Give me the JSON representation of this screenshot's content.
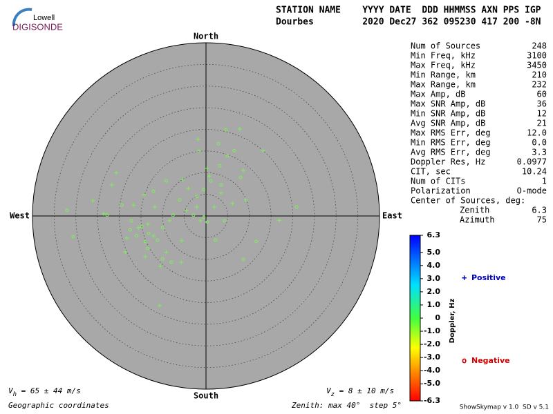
{
  "logo": {
    "top": "Lowell",
    "bottom": "DIGISONDE"
  },
  "header": {
    "line1": "STATION NAME    YYYY DATE  DDD HHMMSS AXN PPS IGP",
    "line2": "Dourbes         2020 Dec27 362 095230 417 200 -8N"
  },
  "stats": [
    [
      "Num of Sources",
      "248"
    ],
    [
      "Min Freq, kHz",
      "3100"
    ],
    [
      "Max Freq, kHz",
      "3450"
    ],
    [
      "Min Range, km",
      "210"
    ],
    [
      "Max Range, km",
      "232"
    ],
    [
      "Max Amp, dB",
      "60"
    ],
    [
      "Max SNR Amp, dB",
      "36"
    ],
    [
      "Min SNR Amp, dB",
      "12"
    ],
    [
      "Avg SNR Amp, dB",
      "21"
    ],
    [
      "Max RMS Err, deg",
      "12.0"
    ],
    [
      "Min RMS Err, deg",
      "0.0"
    ],
    [
      "Avg RMS Err, deg",
      "3.3"
    ],
    [
      "Doppler Res, Hz",
      "0.0977"
    ],
    [
      "CIT, sec",
      "10.24"
    ],
    [
      "Num of CITs",
      "1"
    ],
    [
      "Polarization",
      "O-mode"
    ]
  ],
  "center": {
    "title": "Center of Sources, deg:",
    "rows": [
      [
        "Zenith",
        "6.3"
      ],
      [
        "Azimuth",
        "75"
      ]
    ]
  },
  "chart_data": {
    "type": "skymap",
    "directions": {
      "north": "North",
      "south": "South",
      "west": "West",
      "east": "East"
    },
    "xlim": [
      -40,
      40
    ],
    "ylim": [
      -40,
      40
    ],
    "rticks": [
      5,
      10,
      15,
      20,
      25,
      30,
      35
    ],
    "series": [
      {
        "name": "Positive",
        "marker": "+",
        "color": "#7cf05a",
        "legend_color": "#0000c0",
        "x": [
          -1.8,
          -1.6,
          7.8,
          -20.7,
          -26.1,
          -21.7,
          -10.7,
          8.6,
          -5.4,
          0.2,
          0.8,
          13.1,
          16.9,
          9.2,
          -18.6,
          -14.0,
          -5.7,
          -10.5,
          -18.2,
          -15.6,
          -12.1,
          -8.4,
          -4.5,
          -2.1,
          -1.3,
          1.9,
          3.5,
          -23.6,
          -16.7,
          -14.3,
          -4.1,
          -11.8,
          -13.4,
          -9.2,
          -5.6,
          6.1
        ],
        "values": [
          17.7,
          15.1,
          20.1,
          10.0,
          3.5,
          7.2,
          -20.7,
          10.5,
          8.4,
          11.0,
          9.2,
          15.1,
          -1.0,
          3.7,
          -8.3,
          -9.4,
          -10.7,
          -11.6,
          -5.1,
          -2.7,
          -4.6,
          -1.1,
          1.3,
          2.1,
          -1.1,
          2.1,
          5.3,
          0.5,
          2.5,
          4.9,
          6.4,
          2.1,
          -1.9,
          -8.4,
          -5.7,
          2.9
        ]
      },
      {
        "name": "Negative",
        "marker": "o",
        "color": "#7cf05a",
        "legend_color": "#d00000",
        "x": [
          -32.0,
          -30.6,
          20.9,
          11.6,
          8.6,
          4.6,
          2.9,
          6.5,
          4.9,
          3.2,
          8.0,
          1.1,
          3.5,
          -9.2,
          -12.1,
          -19.4,
          -22.8,
          -17.2,
          -14.8,
          -13.2,
          -11.2,
          -14.0,
          -10.0,
          -7.6,
          -6.1,
          -2.9,
          -0.5,
          0.3,
          -2.1,
          -0.5,
          -10.0,
          -8.0,
          4.3,
          2.2,
          -17.5,
          -16.0,
          -13.4
        ],
        "values": [
          1.3,
          -4.8,
          2.1,
          -5.9,
          -10.0,
          19.9,
          16.7,
          15.1,
          13.9,
          11.6,
          8.9,
          8.1,
          7.2,
          8.1,
          5.7,
          2.5,
          0.2,
          -1.1,
          -2.4,
          -4.0,
          -5.6,
          -5.9,
          -2.7,
          0.2,
          3.7,
          0.2,
          -0.3,
          -1.4,
          4.5,
          6.1,
          -9.9,
          -10.7,
          -1.1,
          -5.6,
          -3.2,
          -4.6,
          -7.5
        ]
      }
    ],
    "colorbar": {
      "label": "Doppler, Hz",
      "lim": [
        -6.3,
        6.3
      ],
      "ticks": [
        {
          "value": 6.3,
          "label": "6.3"
        },
        {
          "value": 5,
          "label": "5.0"
        },
        {
          "value": 4,
          "label": "4.0"
        },
        {
          "value": 3,
          "label": "3.0"
        },
        {
          "value": 2,
          "label": "2.0"
        },
        {
          "value": 1,
          "label": "1.0"
        },
        0,
        {
          "value": -1,
          "label": "-1.0"
        },
        {
          "value": -2,
          "label": "-2.0"
        },
        {
          "value": -3,
          "label": "-3.0"
        },
        {
          "value": -4,
          "label": "-4.0"
        },
        {
          "value": -5,
          "label": "-5.0"
        },
        {
          "value": -6.3,
          "label": "-6.3"
        }
      ]
    },
    "vh": {
      "symbol": "V",
      "sub": "h",
      "text": " = 65 ± 44 m/s"
    },
    "vz": {
      "symbol": "V",
      "sub": "z",
      "text": " = 8 ± 10 m/s"
    },
    "coords": "Geographic coordinates",
    "zenith_note": "Zenith: max 40°  step 5°",
    "version": "ShowSkymap v 1.0  SD v 5.1"
  }
}
